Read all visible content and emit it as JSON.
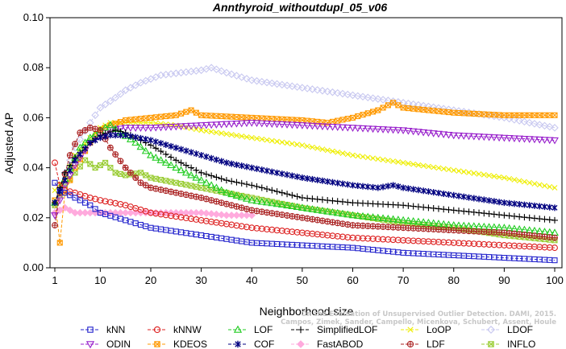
{
  "chart_data": {
    "type": "line",
    "title": "Annthyroid_withoutdupl_05_v06",
    "xlabel": "Neighborhood size",
    "ylabel": "Adjusted AP",
    "xlim": [
      1,
      100
    ],
    "ylim": [
      0,
      0.1
    ],
    "x_ticks": [
      1,
      10,
      20,
      30,
      40,
      50,
      60,
      70,
      80,
      90,
      100
    ],
    "y_ticks": [
      "0.00",
      "0.02",
      "0.04",
      "0.06",
      "0.08",
      "0.10"
    ],
    "watermark": [
      "Campos, Zimek, Sander, Campello, Micenkova, Schubert, Assent, Houle",
      "On the Evaluation of Unsupervised Outlier Detection. DAMI, 2015."
    ],
    "legend_position": "bottom",
    "series": [
      {
        "name": "kNN",
        "color": "#2222cc",
        "marker": "square",
        "points": [
          [
            1,
            0.034
          ],
          [
            2,
            0.031
          ],
          [
            3,
            0.03
          ],
          [
            5,
            0.028
          ],
          [
            8,
            0.025
          ],
          [
            10,
            0.022
          ],
          [
            15,
            0.019
          ],
          [
            20,
            0.016
          ],
          [
            30,
            0.013
          ],
          [
            40,
            0.01
          ],
          [
            50,
            0.009
          ],
          [
            60,
            0.008
          ],
          [
            70,
            0.006
          ],
          [
            80,
            0.005
          ],
          [
            90,
            0.004
          ],
          [
            100,
            0.003
          ]
        ]
      },
      {
        "name": "kNNW",
        "color": "#dd2222",
        "marker": "circle",
        "points": [
          [
            1,
            0.042
          ],
          [
            2,
            0.033
          ],
          [
            3,
            0.031
          ],
          [
            5,
            0.03
          ],
          [
            8,
            0.028
          ],
          [
            10,
            0.027
          ],
          [
            15,
            0.025
          ],
          [
            20,
            0.022
          ],
          [
            30,
            0.019
          ],
          [
            40,
            0.016
          ],
          [
            50,
            0.014
          ],
          [
            60,
            0.012
          ],
          [
            70,
            0.011
          ],
          [
            80,
            0.01
          ],
          [
            90,
            0.009
          ],
          [
            100,
            0.008
          ]
        ]
      },
      {
        "name": "LOF",
        "color": "#22cc22",
        "marker": "triangle-up",
        "points": [
          [
            1,
            0.026
          ],
          [
            2,
            0.031
          ],
          [
            4,
            0.04
          ],
          [
            6,
            0.048
          ],
          [
            8,
            0.052
          ],
          [
            10,
            0.055
          ],
          [
            12,
            0.057
          ],
          [
            14,
            0.054
          ],
          [
            17,
            0.05
          ],
          [
            20,
            0.045
          ],
          [
            25,
            0.04
          ],
          [
            30,
            0.035
          ],
          [
            35,
            0.03
          ],
          [
            40,
            0.027
          ],
          [
            50,
            0.024
          ],
          [
            60,
            0.021
          ],
          [
            70,
            0.019
          ],
          [
            80,
            0.017
          ],
          [
            90,
            0.016
          ],
          [
            100,
            0.014
          ]
        ]
      },
      {
        "name": "SimplifiedLOF",
        "color": "#000000",
        "marker": "plus",
        "points": [
          [
            1,
            0.026
          ],
          [
            3,
            0.038
          ],
          [
            5,
            0.044
          ],
          [
            8,
            0.05
          ],
          [
            10,
            0.053
          ],
          [
            13,
            0.055
          ],
          [
            15,
            0.054
          ],
          [
            20,
            0.049
          ],
          [
            25,
            0.043
          ],
          [
            30,
            0.038
          ],
          [
            35,
            0.035
          ],
          [
            40,
            0.033
          ],
          [
            50,
            0.028
          ],
          [
            60,
            0.026
          ],
          [
            70,
            0.025
          ],
          [
            80,
            0.023
          ],
          [
            90,
            0.021
          ],
          [
            100,
            0.019
          ]
        ]
      },
      {
        "name": "LoOP",
        "color": "#eeee00",
        "marker": "cross",
        "points": [
          [
            1,
            0.031
          ],
          [
            3,
            0.036
          ],
          [
            5,
            0.045
          ],
          [
            8,
            0.052
          ],
          [
            10,
            0.056
          ],
          [
            12,
            0.058
          ],
          [
            15,
            0.058
          ],
          [
            20,
            0.058
          ],
          [
            25,
            0.057
          ],
          [
            30,
            0.055
          ],
          [
            40,
            0.052
          ],
          [
            50,
            0.049
          ],
          [
            60,
            0.045
          ],
          [
            70,
            0.042
          ],
          [
            80,
            0.039
          ],
          [
            90,
            0.036
          ],
          [
            100,
            0.032
          ]
        ]
      },
      {
        "name": "LDOF",
        "color": "#c8c8f0",
        "marker": "diamond",
        "points": [
          [
            1,
            0.025
          ],
          [
            3,
            0.038
          ],
          [
            5,
            0.048
          ],
          [
            8,
            0.058
          ],
          [
            10,
            0.064
          ],
          [
            13,
            0.068
          ],
          [
            15,
            0.071
          ],
          [
            18,
            0.074
          ],
          [
            22,
            0.077
          ],
          [
            26,
            0.078
          ],
          [
            30,
            0.079
          ],
          [
            32,
            0.08
          ],
          [
            35,
            0.078
          ],
          [
            40,
            0.075
          ],
          [
            50,
            0.072
          ],
          [
            60,
            0.069
          ],
          [
            70,
            0.066
          ],
          [
            80,
            0.063
          ],
          [
            90,
            0.06
          ],
          [
            100,
            0.056
          ]
        ]
      },
      {
        "name": "ODIN",
        "color": "#9922cc",
        "marker": "triangle-down",
        "points": [
          [
            1,
            0.021
          ],
          [
            3,
            0.033
          ],
          [
            5,
            0.041
          ],
          [
            8,
            0.05
          ],
          [
            10,
            0.053
          ],
          [
            12,
            0.055
          ],
          [
            15,
            0.056
          ],
          [
            20,
            0.056
          ],
          [
            30,
            0.057
          ],
          [
            40,
            0.058
          ],
          [
            50,
            0.057
          ],
          [
            60,
            0.056
          ],
          [
            70,
            0.055
          ],
          [
            80,
            0.053
          ],
          [
            90,
            0.052
          ],
          [
            100,
            0.051
          ]
        ]
      },
      {
        "name": "KDEOS",
        "color": "#ff9900",
        "marker": "square-x",
        "points": [
          [
            1,
            0.027
          ],
          [
            2,
            0.01
          ],
          [
            3,
            0.03
          ],
          [
            5,
            0.04
          ],
          [
            8,
            0.05
          ],
          [
            10,
            0.055
          ],
          [
            12,
            0.057
          ],
          [
            15,
            0.059
          ],
          [
            20,
            0.06
          ],
          [
            25,
            0.061
          ],
          [
            28,
            0.063
          ],
          [
            30,
            0.061
          ],
          [
            40,
            0.06
          ],
          [
            50,
            0.059
          ],
          [
            55,
            0.058
          ],
          [
            60,
            0.06
          ],
          [
            65,
            0.063
          ],
          [
            68,
            0.066
          ],
          [
            70,
            0.064
          ],
          [
            80,
            0.062
          ],
          [
            90,
            0.061
          ],
          [
            100,
            0.061
          ]
        ]
      },
      {
        "name": "COF",
        "color": "#000080",
        "marker": "asterisk",
        "points": [
          [
            1,
            0.026
          ],
          [
            3,
            0.035
          ],
          [
            5,
            0.043
          ],
          [
            8,
            0.05
          ],
          [
            10,
            0.052
          ],
          [
            12,
            0.053
          ],
          [
            15,
            0.053
          ],
          [
            20,
            0.051
          ],
          [
            25,
            0.048
          ],
          [
            30,
            0.045
          ],
          [
            35,
            0.042
          ],
          [
            40,
            0.04
          ],
          [
            50,
            0.036
          ],
          [
            60,
            0.033
          ],
          [
            65,
            0.032
          ],
          [
            68,
            0.033
          ],
          [
            70,
            0.032
          ],
          [
            80,
            0.029
          ],
          [
            90,
            0.026
          ],
          [
            100,
            0.024
          ]
        ]
      },
      {
        "name": "FastABOD",
        "color": "#ffaadd",
        "marker": "diamond-filled",
        "points": [
          [
            1,
            0.022
          ],
          [
            3,
            0.024
          ],
          [
            5,
            0.022
          ],
          [
            8,
            0.022
          ],
          [
            10,
            0.022
          ],
          [
            15,
            0.022
          ],
          [
            20,
            0.022
          ],
          [
            25,
            0.022
          ],
          [
            30,
            0.022
          ],
          [
            35,
            0.021
          ],
          [
            40,
            0.021
          ]
        ]
      },
      {
        "name": "LDF",
        "color": "#aa2222",
        "marker": "circle-plus",
        "points": [
          [
            1,
            0.017
          ],
          [
            2,
            0.03
          ],
          [
            4,
            0.045
          ],
          [
            6,
            0.054
          ],
          [
            8,
            0.056
          ],
          [
            10,
            0.055
          ],
          [
            12,
            0.048
          ],
          [
            15,
            0.04
          ],
          [
            18,
            0.034
          ],
          [
            20,
            0.032
          ],
          [
            25,
            0.03
          ],
          [
            30,
            0.028
          ],
          [
            40,
            0.023
          ],
          [
            50,
            0.02
          ],
          [
            60,
            0.017
          ],
          [
            70,
            0.016
          ],
          [
            80,
            0.015
          ],
          [
            90,
            0.014
          ],
          [
            100,
            0.012
          ]
        ]
      },
      {
        "name": "INFLO",
        "color": "#99cc33",
        "marker": "square-x2",
        "points": [
          [
            1,
            0.025
          ],
          [
            3,
            0.033
          ],
          [
            5,
            0.038
          ],
          [
            7,
            0.043
          ],
          [
            9,
            0.04
          ],
          [
            11,
            0.042
          ],
          [
            13,
            0.038
          ],
          [
            15,
            0.037
          ],
          [
            18,
            0.038
          ],
          [
            20,
            0.036
          ],
          [
            25,
            0.034
          ],
          [
            30,
            0.032
          ],
          [
            35,
            0.03
          ],
          [
            40,
            0.028
          ],
          [
            45,
            0.026
          ],
          [
            50,
            0.024
          ],
          [
            60,
            0.021
          ],
          [
            70,
            0.018
          ],
          [
            80,
            0.016
          ],
          [
            90,
            0.013
          ],
          [
            100,
            0.011
          ]
        ]
      }
    ]
  }
}
